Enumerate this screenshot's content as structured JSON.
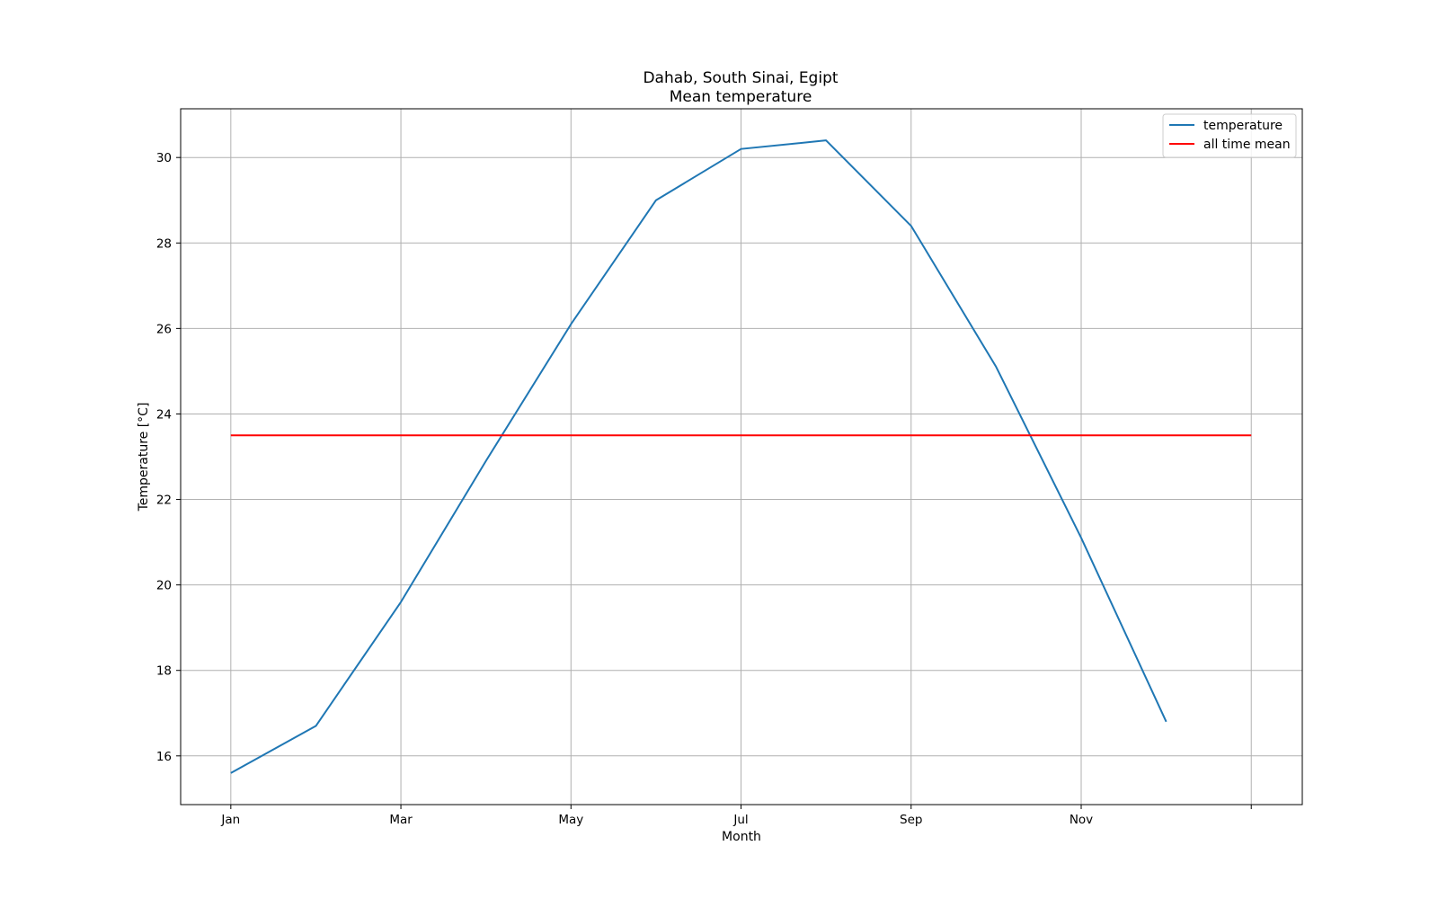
{
  "chart_data": {
    "type": "line",
    "title": "Dahab, South Sinai, Egipt",
    "subtitle": "Mean temperature",
    "xlabel": "Month",
    "ylabel": "Temperature [°C]",
    "x_ticks": [
      {
        "x": 1,
        "label": "Jan"
      },
      {
        "x": 3,
        "label": "Mar"
      },
      {
        "x": 5,
        "label": "May"
      },
      {
        "x": 7,
        "label": "Jul"
      },
      {
        "x": 9,
        "label": "Sep"
      },
      {
        "x": 11,
        "label": "Nov"
      },
      {
        "x": 13,
        "label": ""
      }
    ],
    "y_ticks": [
      16,
      18,
      20,
      22,
      24,
      26,
      28,
      30
    ],
    "xlim": [
      0.41,
      13.6
    ],
    "ylim": [
      14.86,
      31.14
    ],
    "grid": true,
    "legend_position": "top-right",
    "series": [
      {
        "name": "temperature",
        "color": "#1f77b4",
        "x": [
          1,
          2,
          3,
          4,
          5,
          6,
          7,
          8,
          9,
          10,
          11,
          12
        ],
        "values": [
          15.6,
          16.7,
          19.6,
          22.9,
          26.1,
          29.0,
          30.2,
          30.4,
          28.4,
          25.1,
          21.1,
          16.8
        ]
      },
      {
        "name": "all time mean",
        "color": "#ff0000",
        "x": [
          1,
          13
        ],
        "values": [
          23.5,
          23.5
        ]
      }
    ]
  }
}
